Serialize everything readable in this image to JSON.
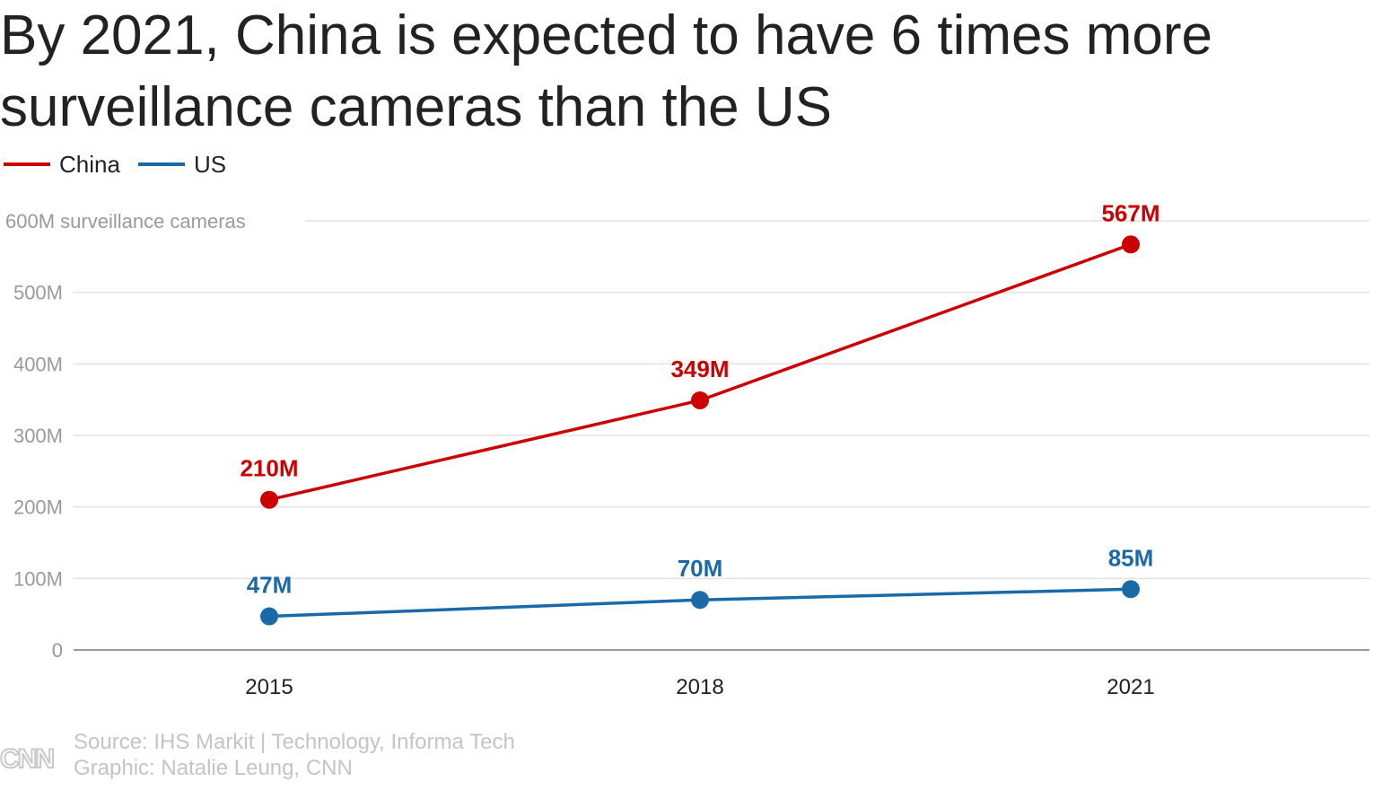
{
  "title": "By 2021, China is expected to have 6 times more surveillance cameras than the US",
  "legend": [
    {
      "label": "China",
      "color": "#cc0000"
    },
    {
      "label": "US",
      "color": "#1a6aa8"
    }
  ],
  "footer": {
    "logo": "CNN",
    "source": "Source: IHS Markit | Technology, Informa Tech",
    "credit": "Graphic: Natalie Leung, CNN"
  },
  "chart_data": {
    "type": "line",
    "title": "By 2021, China is expected to have 6 times more surveillance cameras than the US",
    "xlabel": "",
    "ylabel": "surveillance cameras",
    "x": [
      "2015",
      "2018",
      "2021"
    ],
    "ylim": [
      0,
      600
    ],
    "yticks": [
      0,
      100,
      200,
      300,
      400,
      500,
      600
    ],
    "ytick_labels": [
      "0",
      "100M",
      "200M",
      "300M",
      "400M",
      "500M",
      "600M surveillance cameras"
    ],
    "grid": true,
    "legend_position": "top-left",
    "series": [
      {
        "name": "China",
        "color": "#cc0000",
        "values": [
          210,
          349,
          567
        ],
        "labels": [
          "210M",
          "349M",
          "567M"
        ]
      },
      {
        "name": "US",
        "color": "#1a6aa8",
        "values": [
          47,
          70,
          85
        ],
        "labels": [
          "47M",
          "70M",
          "85M"
        ]
      }
    ]
  }
}
